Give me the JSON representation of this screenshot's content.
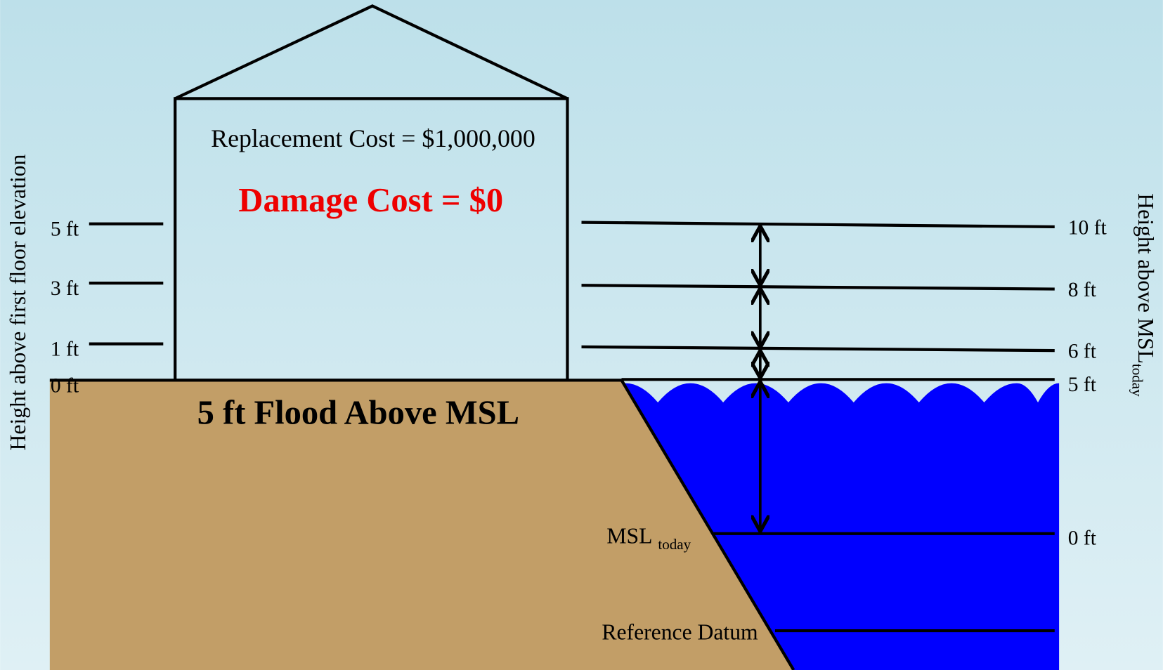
{
  "building": {
    "replacement_cost": "Replacement Cost = $1,000,000",
    "damage_cost": "Damage Cost = $0"
  },
  "flood_label": "5 ft Flood Above MSL",
  "left_axis": {
    "label": "Height above first floor elevation",
    "ticks": [
      "5 ft",
      "3 ft",
      "1 ft",
      "0 ft"
    ]
  },
  "right_axis": {
    "label": "Height above MSL",
    "label_subscript": "today",
    "ticks": [
      "10 ft",
      "8 ft",
      "6 ft",
      "5 ft",
      "0 ft"
    ]
  },
  "msl_label": {
    "text": "MSL",
    "subscript": "today"
  },
  "reference_datum": "Reference Datum"
}
